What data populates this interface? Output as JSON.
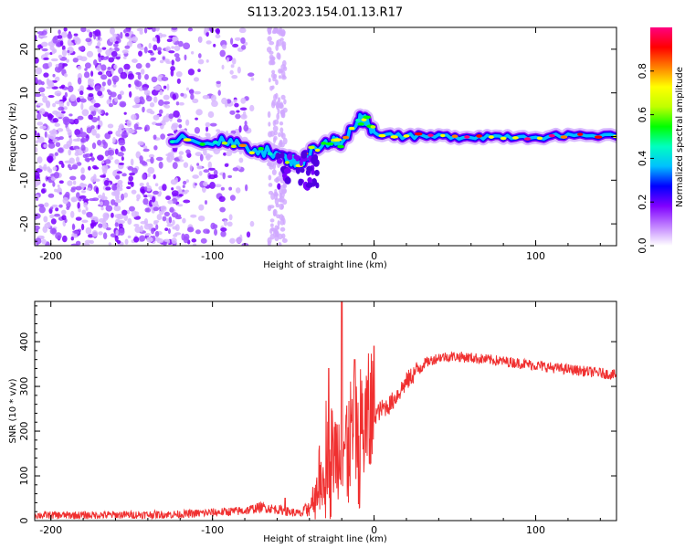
{
  "title": "S113.2023.154.01.13.R17",
  "chart_data": [
    {
      "type": "heatmap",
      "name": "spectrogram",
      "xlabel": "Height of straight line (km)",
      "ylabel": "Frequency (Hz)",
      "xlim": [
        -210,
        150
      ],
      "ylim": [
        -25,
        25
      ],
      "xticks": [
        -200,
        -100,
        0,
        100
      ],
      "yticks": [
        -20,
        -10,
        0,
        10,
        20
      ],
      "colorbar": {
        "label": "Normalized spectral amplitude",
        "range": [
          0.0,
          1.0
        ],
        "ticks": [
          "0.0",
          "0.2",
          "0.4",
          "0.6",
          "0.8"
        ],
        "colors": [
          "#ffffff",
          "#c080ff",
          "#8000ff",
          "#0000ff",
          "#00c0ff",
          "#00ffc0",
          "#00ff00",
          "#c0ff00",
          "#ffff00",
          "#ff8000",
          "#ff0000",
          "#ff0080"
        ]
      },
      "features": {
        "noise_region_km": [
          -210,
          -100
        ],
        "sparse_region_km": [
          -65,
          -55
        ],
        "signal_trace": [
          {
            "x": -125,
            "y": 0
          },
          {
            "x": -100,
            "y": -1
          },
          {
            "x": -85,
            "y": -2
          },
          {
            "x": -70,
            "y": -3
          },
          {
            "x": -55,
            "y": -5
          },
          {
            "x": -45,
            "y": -6
          },
          {
            "x": -35,
            "y": -2
          },
          {
            "x": -25,
            "y": -1
          },
          {
            "x": -20,
            "y": -2
          },
          {
            "x": -10,
            "y": 4
          },
          {
            "x": -5,
            "y": 4
          },
          {
            "x": 0,
            "y": 1
          },
          {
            "x": 20,
            "y": 0
          },
          {
            "x": 40,
            "y": 0
          },
          {
            "x": 60,
            "y": 0
          },
          {
            "x": 80,
            "y": 0
          },
          {
            "x": 100,
            "y": 0
          },
          {
            "x": 120,
            "y": 0
          },
          {
            "x": 150,
            "y": 0
          }
        ]
      }
    },
    {
      "type": "line",
      "name": "snr",
      "xlabel": "Height of straight line (km)",
      "ylabel": "SNR (10 * v/v)",
      "xlim": [
        -210,
        150
      ],
      "ylim": [
        0,
        490
      ],
      "xticks": [
        -200,
        -100,
        0,
        100
      ],
      "yticks": [
        0,
        100,
        200,
        300,
        400
      ],
      "color": "#f03030",
      "series": [
        {
          "name": "SNR",
          "x": [
            -210,
            -180,
            -150,
            -120,
            -100,
            -80,
            -70,
            -60,
            -50,
            -45,
            -40,
            -35,
            -30,
            -25,
            -20,
            -15,
            -10,
            -5,
            0,
            5,
            10,
            20,
            30,
            40,
            50,
            60,
            70,
            80,
            90,
            100,
            110,
            120,
            130,
            140,
            150
          ],
          "y": [
            12,
            12,
            13,
            14,
            18,
            22,
            30,
            25,
            18,
            15,
            30,
            80,
            170,
            150,
            160,
            190,
            200,
            215,
            235,
            250,
            260,
            310,
            350,
            365,
            367,
            364,
            360,
            356,
            352,
            347,
            342,
            338,
            334,
            330,
            325
          ]
        }
      ],
      "spikes": [
        {
          "x": -20,
          "y": 490
        },
        {
          "x": -28,
          "y": 340
        },
        {
          "x": -12,
          "y": 360
        },
        {
          "x": 0,
          "y": 390
        },
        {
          "x": -55,
          "y": 50
        }
      ]
    }
  ]
}
